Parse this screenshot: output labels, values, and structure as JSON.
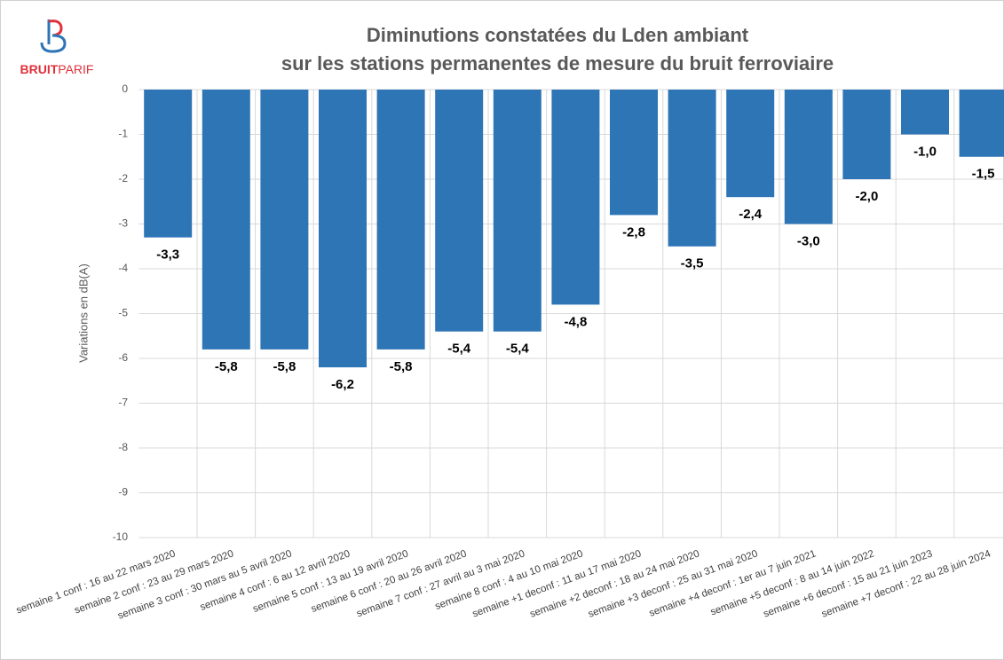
{
  "chart_data": {
    "type": "bar",
    "logo": {
      "bold": "BRUIT",
      "light": "PARIF"
    },
    "title": "Diminutions constatées du Lden ambiant",
    "subtitle": "sur les stations permanentes de mesure du bruit ferroviaire",
    "y_label": "Variations en dB(A)",
    "categories": [
      "semaine 1 conf : 16 au 22 mars 2020",
      "semaine 2 conf : 23 au 29 mars 2020",
      "semaine 3 conf : 30 mars au 5 avril 2020",
      "semaine 4 conf : 6 au 12 avril 2020",
      "semaine 5 conf : 13 au 19 avril 2020",
      "semaine 6 conf : 20 au 26 avril 2020",
      "semaine 7 conf : 27 avril au 3 mai 2020",
      "semaine 8 conf : 4 au 10 mai 2020",
      "semaine +1 deconf : 11 au 17 mai 2020",
      "semaine +2 deconf : 18 au 24 mai 2020",
      "semaine +3 deconf : 25 au 31 mai 2020",
      "semaine +4 deconf : 1er au 7 juin 2021",
      "semaine +5 deconf : 8 au 14 juin 2022",
      "semaine +6 deconf : 15 au 21 juin 2023",
      "semaine +7 deconf : 22 au 28 juin 2024"
    ],
    "values": [
      -3.3,
      -5.8,
      -5.8,
      -6.2,
      -5.8,
      -5.4,
      -5.4,
      -4.8,
      -2.8,
      -3.5,
      -2.4,
      -3.0,
      -2.0,
      -1.0,
      -1.5
    ],
    "value_labels": [
      "-3,3",
      "-5,8",
      "-5,8",
      "-6,2",
      "-5,8",
      "-5,4",
      "-5,4",
      "-4,8",
      "-2,8",
      "-3,5",
      "-2,4",
      "-3,0",
      "-2,0",
      "-1,0",
      "-1,5"
    ],
    "color": "#2e75b6",
    "ylim": [
      -10,
      0
    ],
    "yticks": [
      0,
      -1,
      -2,
      -3,
      -4,
      -5,
      -6,
      -7,
      -8,
      -9,
      -10
    ],
    "grid": true
  }
}
